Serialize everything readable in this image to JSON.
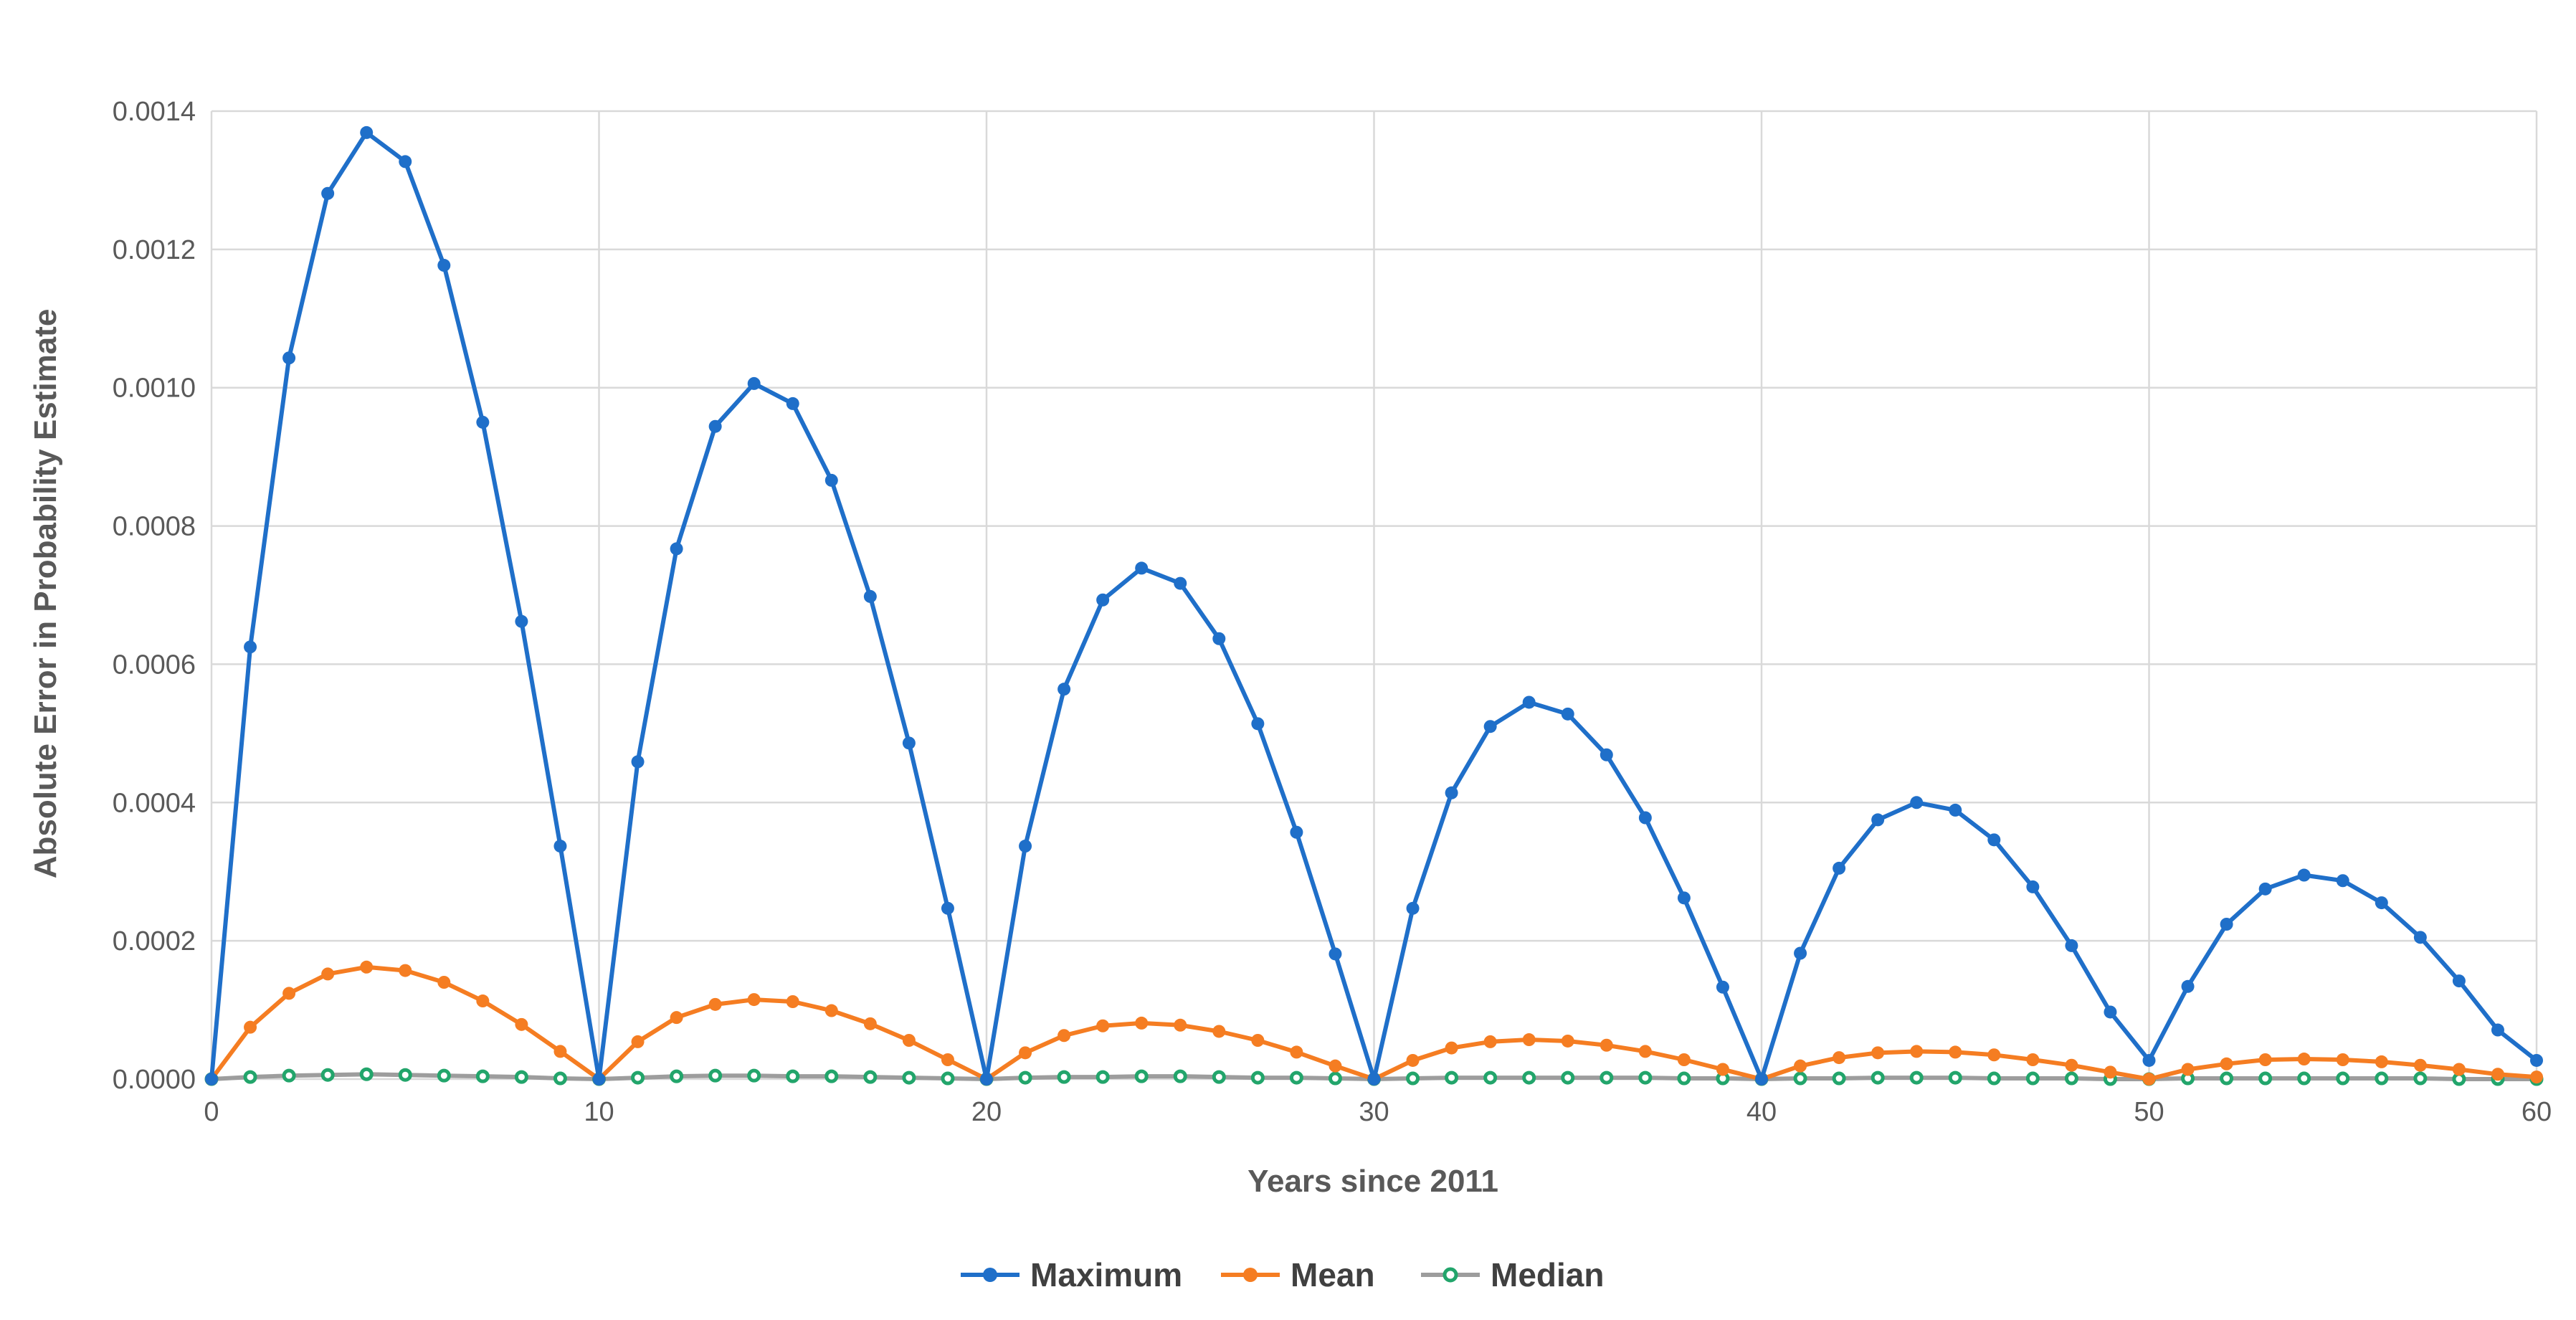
{
  "chart_data": {
    "type": "line",
    "title": "",
    "xlabel": "Years since 2011",
    "ylabel": "Absolute Error in Probability Estimate",
    "xlim": [
      0,
      60
    ],
    "ylim": [
      0,
      0.0014
    ],
    "x_ticks": [
      "0",
      "10",
      "20",
      "30",
      "40",
      "50",
      "60"
    ],
    "y_ticks": [
      "0.0000",
      "0.0002",
      "0.0004",
      "0.0006",
      "0.0008",
      "0.0010",
      "0.0012",
      "0.0014"
    ],
    "grid": true,
    "legend_position": "bottom",
    "x": [
      0,
      1,
      2,
      3,
      4,
      5,
      6,
      7,
      8,
      9,
      10,
      11,
      12,
      13,
      14,
      15,
      16,
      17,
      18,
      19,
      20,
      21,
      22,
      23,
      24,
      25,
      26,
      27,
      28,
      29,
      30,
      31,
      32,
      33,
      34,
      35,
      36,
      37,
      38,
      39,
      40,
      41,
      42,
      43,
      44,
      45,
      46,
      47,
      48,
      49,
      50,
      51,
      52,
      53,
      54,
      55,
      56,
      57,
      58,
      59,
      60
    ],
    "series": [
      {
        "name": "Maximum",
        "color": "#1f6fc9",
        "marker": "filled",
        "values": [
          0.0,
          0.000625,
          0.001043,
          0.001281,
          0.001369,
          0.001327,
          0.001177,
          0.00095,
          0.000662,
          0.000337,
          0.0,
          0.000459,
          0.000767,
          0.000944,
          0.001006,
          0.000977,
          0.000866,
          0.000698,
          0.000486,
          0.000247,
          0.0,
          0.000337,
          0.000564,
          0.000693,
          0.000739,
          0.000717,
          0.000637,
          0.000514,
          0.000357,
          0.000181,
          0.0,
          0.000247,
          0.000414,
          0.00051,
          0.000545,
          0.000528,
          0.000469,
          0.000378,
          0.000262,
          0.000133,
          0.0,
          0.000182,
          0.000305,
          0.000375,
          0.0004,
          0.000389,
          0.000346,
          0.000278,
          0.000193,
          9.7e-05,
          2.7e-05,
          0.000134,
          0.000224,
          0.000275,
          0.000295,
          0.000287,
          0.000255,
          0.000205,
          0.000142,
          7.1e-05,
          2.7e-05
        ]
      },
      {
        "name": "Mean",
        "color": "#f57d22",
        "marker": "filled",
        "values": [
          0.0,
          7.5e-05,
          0.000124,
          0.000152,
          0.000162,
          0.000157,
          0.00014,
          0.000113,
          7.9e-05,
          4e-05,
          0.0,
          5.4e-05,
          8.9e-05,
          0.000108,
          0.000115,
          0.000112,
          9.9e-05,
          8e-05,
          5.6e-05,
          2.8e-05,
          0.0,
          3.8e-05,
          6.3e-05,
          7.7e-05,
          8.1e-05,
          7.8e-05,
          6.9e-05,
          5.6e-05,
          3.9e-05,
          1.9e-05,
          0.0,
          2.7e-05,
          4.5e-05,
          5.4e-05,
          5.7e-05,
          5.5e-05,
          4.9e-05,
          4e-05,
          2.8e-05,
          1.4e-05,
          0.0,
          1.9e-05,
          3.1e-05,
          3.8e-05,
          4e-05,
          3.9e-05,
          3.5e-05,
          2.8e-05,
          2e-05,
          1e-05,
          0.0,
          1.4e-05,
          2.2e-05,
          2.8e-05,
          2.9e-05,
          2.8e-05,
          2.5e-05,
          2e-05,
          1.4e-05,
          7e-06,
          3e-06
        ]
      },
      {
        "name": "Median",
        "color": "#22a56b",
        "line_color": "#9d9d9d",
        "marker": "hollow",
        "values": [
          0.0,
          3e-06,
          5e-06,
          6e-06,
          7e-06,
          6e-06,
          5e-06,
          4e-06,
          3e-06,
          1e-06,
          0.0,
          2e-06,
          4e-06,
          5e-06,
          5e-06,
          4e-06,
          4e-06,
          3e-06,
          2e-06,
          1e-06,
          0.0,
          2e-06,
          3e-06,
          3e-06,
          4e-06,
          4e-06,
          3e-06,
          2e-06,
          2e-06,
          1e-06,
          0.0,
          1e-06,
          2e-06,
          2e-06,
          2e-06,
          2e-06,
          2e-06,
          2e-06,
          1e-06,
          1e-06,
          0.0,
          1e-06,
          1e-06,
          2e-06,
          2e-06,
          2e-06,
          1e-06,
          1e-06,
          1e-06,
          0.0,
          0.0,
          1e-06,
          1e-06,
          1e-06,
          1e-06,
          1e-06,
          1e-06,
          1e-06,
          0.0,
          0.0,
          0.0
        ]
      }
    ]
  }
}
